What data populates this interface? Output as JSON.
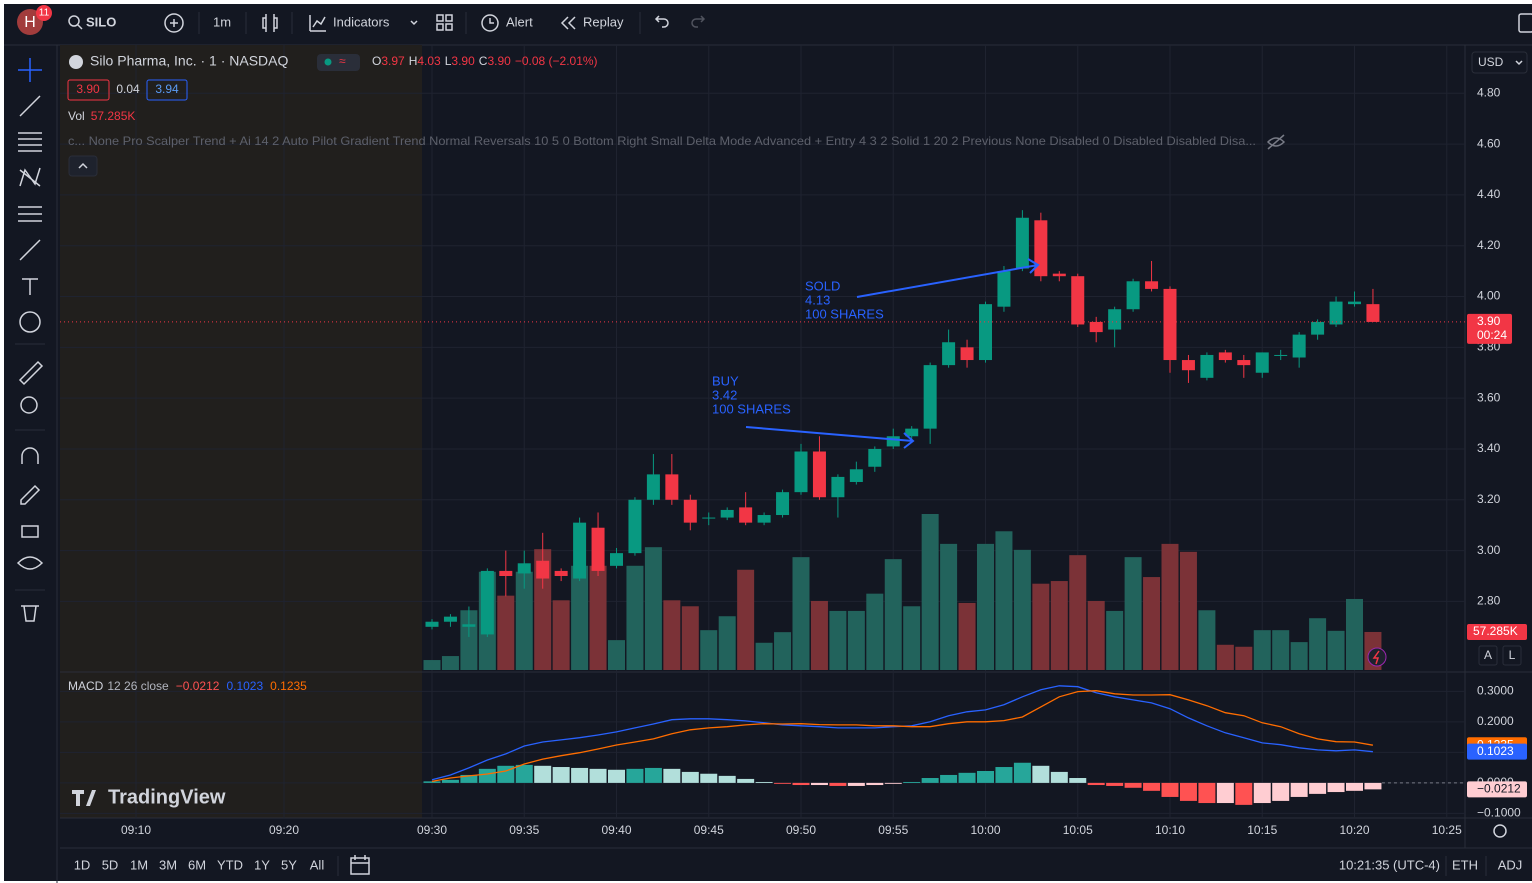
{
  "toolbar": {
    "avatar": "H",
    "badge": "11",
    "symbol": "SILO",
    "interval": "1m",
    "indicators": "Indicators",
    "alert": "Alert",
    "replay": "Replay",
    "currency": "USD"
  },
  "legend": {
    "name": "Silo Pharma, Inc. · 1 · NASDAQ",
    "o_label": "O",
    "open": "3.97",
    "h_label": "H",
    "high": "4.03",
    "l_label": "L",
    "low": "3.90",
    "c_label": "C",
    "close": "3.90",
    "change": "−0.08 (−2.01%)",
    "bid": "3.90",
    "spread": "0.04",
    "ask": "3.94",
    "vol_label": "Vol",
    "indicator": "c... None Pro Scalper Trend + Ai 14 2 Auto Pilot Gradient Trend Normal Reversals 10 5 0 Bottom Right Small Delta Mode Advanced + Entry 4 3 2 Solid 1 20 2 Previous None Disabled 0 Disabled Disabled Disa..."
  },
  "annotations": [
    {
      "lines": [
        "SOLD",
        "4.13",
        "100 SHARES"
      ]
    },
    {
      "lines": [
        "BUY",
        "3.42",
        "100 SHARES"
      ]
    }
  ],
  "chart_data": {
    "type": "candlestick",
    "x": [
      "09:30",
      "09:31",
      "09:32",
      "09:33",
      "09:34",
      "09:35",
      "09:36",
      "09:37",
      "09:38",
      "09:39",
      "09:40",
      "09:41",
      "09:42",
      "09:43",
      "09:44",
      "09:45",
      "09:46",
      "09:47",
      "09:48",
      "09:49",
      "09:50",
      "09:51",
      "09:52",
      "09:53",
      "09:54",
      "09:55",
      "09:56",
      "09:57",
      "09:58",
      "09:59",
      "10:00",
      "10:01",
      "10:02",
      "10:03",
      "10:04",
      "10:05",
      "10:06",
      "10:07",
      "10:08",
      "10:09",
      "10:10",
      "10:11",
      "10:12",
      "10:13",
      "10:14",
      "10:15",
      "10:16",
      "10:17",
      "10:18",
      "10:19",
      "10:20",
      "10:21"
    ],
    "open": [
      2.7,
      2.72,
      2.7,
      2.67,
      2.92,
      2.91,
      2.96,
      2.92,
      2.89,
      3.09,
      2.94,
      2.99,
      3.2,
      3.3,
      3.2,
      3.13,
      3.13,
      3.17,
      3.11,
      3.14,
      3.23,
      3.39,
      3.21,
      3.27,
      3.33,
      3.41,
      3.45,
      3.48,
      3.73,
      3.8,
      3.75,
      3.96,
      4.11,
      4.3,
      4.09,
      4.08,
      3.9,
      3.87,
      3.95,
      4.06,
      4.03,
      3.75,
      3.68,
      3.78,
      3.75,
      3.7,
      3.77,
      3.76,
      3.85,
      3.89,
      3.97,
      3.97
    ],
    "high": [
      2.73,
      2.75,
      2.78,
      2.93,
      3.0,
      3.0,
      3.07,
      2.93,
      3.13,
      3.15,
      3.01,
      3.21,
      3.38,
      3.38,
      3.22,
      3.15,
      3.17,
      3.23,
      3.15,
      3.24,
      3.42,
      3.45,
      3.3,
      3.35,
      3.41,
      3.48,
      3.49,
      3.74,
      3.87,
      3.83,
      3.98,
      4.12,
      4.34,
      4.33,
      4.1,
      4.09,
      3.92,
      3.96,
      4.07,
      4.14,
      4.04,
      3.77,
      3.78,
      3.79,
      3.77,
      3.78,
      3.79,
      3.86,
      3.91,
      4.0,
      4.02,
      4.03
    ],
    "low": [
      2.69,
      2.7,
      2.66,
      2.66,
      2.82,
      2.85,
      2.85,
      2.88,
      2.88,
      2.9,
      2.93,
      2.98,
      3.18,
      3.18,
      3.08,
      3.1,
      3.12,
      3.1,
      3.1,
      3.13,
      3.22,
      3.2,
      3.13,
      3.26,
      3.31,
      3.4,
      3.44,
      3.42,
      3.72,
      3.72,
      3.74,
      3.94,
      4.1,
      4.06,
      4.06,
      3.88,
      3.82,
      3.8,
      3.94,
      4.02,
      3.7,
      3.66,
      3.67,
      3.74,
      3.68,
      3.68,
      3.75,
      3.72,
      3.83,
      3.88,
      3.96,
      3.9
    ],
    "close": [
      2.72,
      2.74,
      2.71,
      2.92,
      2.9,
      2.95,
      2.89,
      2.9,
      3.11,
      2.92,
      2.99,
      3.2,
      3.3,
      3.2,
      3.11,
      3.13,
      3.16,
      3.11,
      3.14,
      3.23,
      3.39,
      3.21,
      3.29,
      3.32,
      3.4,
      3.45,
      3.48,
      3.73,
      3.82,
      3.75,
      3.97,
      4.1,
      4.31,
      4.08,
      4.08,
      3.89,
      3.86,
      3.95,
      4.06,
      4.03,
      3.75,
      3.71,
      3.77,
      3.75,
      3.73,
      3.78,
      3.77,
      3.85,
      3.9,
      3.98,
      3.98,
      3.9
    ],
    "volume": [
      15000,
      21000,
      90000,
      148000,
      112000,
      148000,
      182000,
      105000,
      157000,
      157000,
      45000,
      157000,
      185000,
      105000,
      96000,
      60000,
      81000,
      151000,
      41000,
      57000,
      170000,
      104000,
      89000,
      89000,
      115000,
      167000,
      96000,
      235000,
      190000,
      101000,
      190000,
      209000,
      181000,
      130000,
      134000,
      173000,
      104000,
      89000,
      170000,
      140000,
      190000,
      178000,
      90000,
      38000,
      35000,
      60000,
      60000,
      42000,
      78000,
      59000,
      107000,
      57285
    ],
    "volume_label": "57.285K",
    "last_label": "3.90",
    "countdown": "00:24",
    "up_color": "#089981",
    "down_color": "#f23645",
    "volume_up_color": "#22635c",
    "volume_down_color": "#7b3237",
    "ylim": [
      2.53,
      4.99
    ],
    "yticks": [
      {
        "value": 4.8,
        "label": "4.80"
      },
      {
        "value": 4.6,
        "label": "4.60"
      },
      {
        "value": 4.4,
        "label": "4.40"
      },
      {
        "value": 4.2,
        "label": "4.20"
      },
      {
        "value": 4,
        "label": "4.00"
      },
      {
        "value": 3.8,
        "label": "3.80"
      },
      {
        "value": 3.6,
        "label": "3.60"
      },
      {
        "value": 3.4,
        "label": "3.40"
      },
      {
        "value": 3.2,
        "label": "3.20"
      },
      {
        "value": 3,
        "label": "3.00"
      },
      {
        "value": 2.8,
        "label": "2.80"
      }
    ],
    "xticks": [
      "09:10",
      "09:20",
      "09:30",
      "09:35",
      "09:40",
      "09:45",
      "09:50",
      "09:55",
      "10:00",
      "10:05",
      "10:10",
      "10:15",
      "10:20",
      "10:25"
    ],
    "grid": true,
    "macd": {
      "name": "MACD",
      "params": "12 26 close",
      "series": [
        {
          "color": "#2962ff",
          "values": [
            0.01,
            0.026,
            0.049,
            0.075,
            0.095,
            0.121,
            0.134,
            0.141,
            0.148,
            0.157,
            0.167,
            0.18,
            0.193,
            0.207,
            0.21,
            0.21,
            0.207,
            0.203,
            0.197,
            0.19,
            0.187,
            0.184,
            0.18,
            0.18,
            0.18,
            0.184,
            0.187,
            0.2,
            0.22,
            0.233,
            0.239,
            0.256,
            0.282,
            0.305,
            0.318,
            0.315,
            0.295,
            0.282,
            0.272,
            0.262,
            0.243,
            0.213,
            0.187,
            0.164,
            0.148,
            0.131,
            0.125,
            0.115,
            0.108,
            0.105,
            0.108,
            0.1023
          ],
          "last_label": "0.1023"
        },
        {
          "color": "#ff6d00",
          "values": [
            0.005,
            0.016,
            0.023,
            0.029,
            0.039,
            0.062,
            0.078,
            0.089,
            0.099,
            0.111,
            0.124,
            0.134,
            0.144,
            0.161,
            0.174,
            0.18,
            0.184,
            0.19,
            0.194,
            0.193,
            0.194,
            0.191,
            0.19,
            0.19,
            0.187,
            0.187,
            0.184,
            0.184,
            0.194,
            0.2,
            0.2,
            0.204,
            0.216,
            0.249,
            0.282,
            0.299,
            0.302,
            0.292,
            0.288,
            0.288,
            0.289,
            0.272,
            0.253,
            0.23,
            0.22,
            0.197,
            0.184,
            0.161,
            0.144,
            0.135,
            0.134,
            0.1235
          ],
          "last_label": "0.1235"
        }
      ],
      "histogram": {
        "values": [
          0.005,
          0.01,
          0.026,
          0.046,
          0.056,
          0.059,
          0.056,
          0.052,
          0.049,
          0.046,
          0.043,
          0.046,
          0.049,
          0.046,
          0.036,
          0.03,
          0.023,
          0.013,
          0.003,
          -0.003,
          -0.007,
          -0.007,
          -0.01,
          -0.01,
          -0.007,
          -0.003,
          0.003,
          0.016,
          0.026,
          0.033,
          0.039,
          0.052,
          0.066,
          0.056,
          0.036,
          0.016,
          -0.007,
          -0.01,
          -0.016,
          -0.026,
          -0.046,
          -0.059,
          -0.066,
          -0.066,
          -0.072,
          -0.066,
          -0.059,
          -0.046,
          -0.036,
          -0.03,
          -0.026,
          -0.0212
        ],
        "last_label": "−0.0212",
        "colors": [
          "#26a69a",
          "#b2dfdb",
          "#ff5252",
          "#ffcdd2"
        ]
      },
      "ylim": [
        -0.115,
        0.36
      ],
      "yticks": [
        {
          "value": 0.3,
          "label": "0.3000"
        },
        {
          "value": 0.2,
          "label": "0.2000"
        },
        {
          "value": 0.1,
          "label": "0.1000"
        },
        {
          "value": 0,
          "label": "0.0000"
        },
        {
          "value": -0.1,
          "label": "−0.1000"
        }
      ]
    }
  },
  "logo": "TradingView",
  "bottom_bar": {
    "ranges": [
      "1D",
      "5D",
      "1M",
      "3M",
      "6M",
      "YTD",
      "1Y",
      "5Y",
      "All"
    ],
    "clock": "10:21:35 (UTC-4)",
    "session": "ETH",
    "adjust": "ADJ",
    "scale_auto": "A",
    "scale_log": "L"
  }
}
